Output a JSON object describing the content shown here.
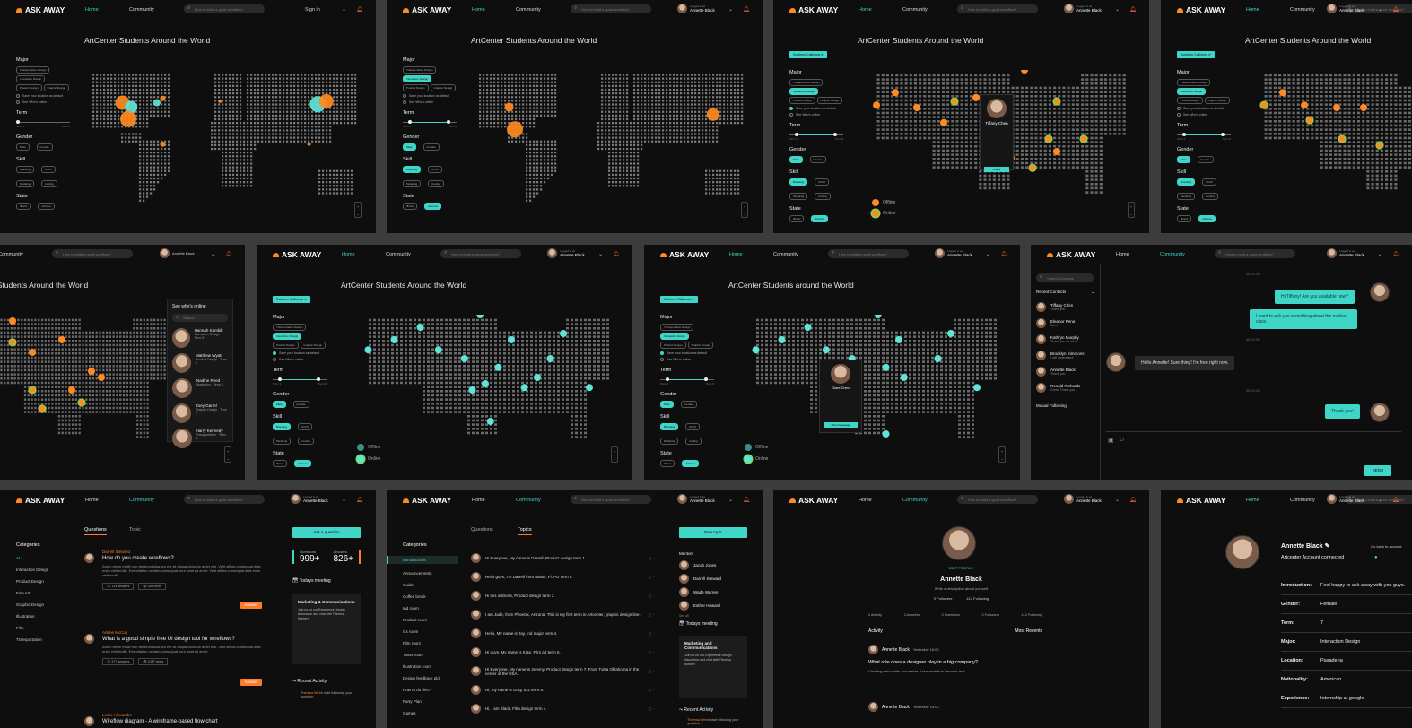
{
  "brand": {
    "name": "ASK AWAY",
    "accent": "#3fd6c8",
    "orange": "#ff7a2a",
    "bg": "#0e0e0e"
  },
  "nav": {
    "home": "Home",
    "community": "Community",
    "sign_in": "Sign in",
    "logged_in": "Logged in as",
    "user_name": "Annette Black"
  },
  "search": {
    "placeholder": "How to build a good workflow?",
    "contacts_placeholder": "Search Contacts",
    "online_placeholder": "Search"
  },
  "map": {
    "title": "ArtCenter Students Around the World",
    "title_alt": "ArtCenter Students around the World",
    "filters": {
      "major": "Major",
      "major_options": [
        "Transportation Design",
        "Interaction Design",
        "Product Design",
        "Graphic Design"
      ],
      "save_location": "Save your location as default",
      "see_online": "See Who's online",
      "term": "Term",
      "term_min": "Term 1",
      "term_max": "Term 8",
      "gender": "Gender",
      "gender_options": [
        "Male",
        "Female"
      ],
      "skill": "Skill",
      "skill_options": [
        "Branding",
        "UI/UX",
        "Modeling",
        "Coding"
      ],
      "state": "State",
      "state_options": [
        "Illinois",
        "Arizona"
      ]
    },
    "tag": "Southern California",
    "legend": {
      "offline": "Offline",
      "online": "Online"
    },
    "zoom_in": "+",
    "zoom_out": "−",
    "popup": {
      "name": "Tiffany Chen",
      "name2": "Glare Chen",
      "follow": "Follow",
      "dm": "Direct Message"
    }
  },
  "online_panel": {
    "title": "See who's online",
    "people": [
      {
        "name": "Hannah Kambik",
        "detail": "Interaction Design · Term 3"
      },
      {
        "name": "Matthew Wyatt",
        "detail": "Product Design · Term 6"
      },
      {
        "name": "Nadine Reed",
        "detail": "Illustration · Term 4"
      },
      {
        "name": "Zoey Garrel",
        "detail": "Graphic Design · Term 2"
      },
      {
        "name": "Harry Kennedy",
        "detail": "Transportation · Term 5"
      }
    ]
  },
  "chat": {
    "recent_contacts": "Recent Contacts",
    "mutual_following": "Mutual Following",
    "contacts": [
      {
        "name": "Tiffany Chen",
        "sub": "Thank you"
      },
      {
        "name": "Eleanor Pena",
        "sub": "Sure!"
      },
      {
        "name": "Kathryn Murphy",
        "sub": "Thank you so much"
      },
      {
        "name": "Brooklyn Simmons",
        "sub": "I will understand"
      },
      {
        "name": "Annette Black",
        "sub": "Thank you"
      },
      {
        "name": "Ronald Richards",
        "sub": "Great! Thank you"
      }
    ],
    "messages": [
      {
        "time": "08:02:40",
        "text": "Hi Tiffany! Are you available now?",
        "me": true
      },
      {
        "text": "I want to ask you something about the motion class.",
        "me": true
      },
      {
        "time": "08:02:50",
        "text": "Hello Annette! Sure thing! I'm free right now.",
        "me": false
      },
      {
        "time": "08:03:00",
        "text": "Thank you!",
        "me": true
      }
    ],
    "send": "SEND"
  },
  "community": {
    "tabs": [
      "Questions",
      "Topic"
    ],
    "tabs2": [
      "Questions",
      "Topics"
    ],
    "ask": "Ask a question",
    "new_topic": "New topic",
    "categories_label": "Categories",
    "categories": [
      "ALL",
      "Interaction Design",
      "Product Design",
      "Fine Art",
      "Graphic Design",
      "Illustration",
      "Film",
      "Transportation"
    ],
    "topic_cats": [
      "Introductions",
      "Announcements",
      "Guide",
      "Coffee break",
      "Ind room",
      "Product room",
      "Gx room",
      "Film room",
      "Trans room",
      "Illustration room",
      "Design feedback pld",
      "How to do this?",
      "Party Plan",
      "Games"
    ],
    "stats": {
      "questions_label": "Questions",
      "questions": "999+",
      "answers_label": "Answers",
      "answers": "826+"
    },
    "meeting": "Todays meeting",
    "meeting_card_title": "Marketing & Communications",
    "meeting_card_title2": "Marketing and Communications",
    "meeting_card_body": "Join us for our Experience Design discussion and chat with Theresa Norbert",
    "recent_activity": "Recent Activity",
    "activity_user": "Theresa Webb",
    "activity_text": "start following your question.",
    "answer_btn": "Answer",
    "mentors": "Mentors",
    "mentor_names": [
      "Jacob Jones",
      "Darrell Steward",
      "Wade Warren",
      "Esther Howard"
    ],
    "see_all": "See all",
    "questions": [
      {
        "author": "Darrell Steward",
        "title": "How do you create wireflows?",
        "body": "Amet minim mollit non deserunt ullamco est sit aliqua dolor do amet sint. Velit officia consequat duis enim velit mollit. Exercitation veniam consequat sunt nostrud amet. Velit officia consequat duis enim velit mollit.",
        "answers": "124 answers",
        "views": "285 views"
      },
      {
        "author": "Arlene McCoy",
        "title": "What is a good simple free UI design tool for wireflows?",
        "body": "Amet minim mollit non deserunt ullamco est sit aliqua dolor do amet sint. Velit officia consequat duis enim velit mollit. Exercitation veniam consequat sunt nostrud amet.",
        "answers": "377 answers",
        "views": "1087 views"
      },
      {
        "author": "Leslie Alexander",
        "title": "Wireflow diagram - A wireframe-based flow chart"
      }
    ],
    "topics": [
      "Hi Everyone, My name is Darrell, Product design term 1",
      "Hello guys, I'm Darrell from Miami, Fl. PD term 5.",
      "Hi this is Elena, Product design term 3.",
      "I am Jade, from Phoenix, Arizona. This is my first term in Artcenter, graphic design line.",
      "Hello, My name is Jay, Ind major term 4.",
      "Hi guys, My name is Kate, Film art term 6.",
      "Hi Everyone, My name is Jeremy, Product design term 7. From Tulsa Oklahoma in the center of the USA.",
      "Hi, my name is Gray, ID2 term 5.",
      "Hi, I am Black, Film design term 4."
    ]
  },
  "profile": {
    "edit": "EDIT PROFILE",
    "name": "Annette Black",
    "bio": "Write a description about yourself",
    "followers": "0 Followers",
    "following": "412 Following",
    "stats": [
      "0 Activity",
      "2 Answers",
      "0 Questions",
      "0 Followers",
      "412 Following"
    ],
    "activity": "Activity",
    "most_recent": "Most Recents",
    "post_time": "Yesterday 18:00",
    "post_q": "What role does a designer play in a big company?",
    "post_body": "Creating new spirits and makes it reasonable to become true."
  },
  "account": {
    "name": "Annette Black",
    "connected": "Artcenter Account connected",
    "back": "Go back to account",
    "rows": [
      [
        "Introduction:",
        "Feel happy to ask away with you guys."
      ],
      [
        "Gender:",
        "Female"
      ],
      [
        "Term:",
        "7"
      ],
      [
        "Major:",
        "Interaction Design"
      ],
      [
        "Location:",
        "Pasadena"
      ],
      [
        "Nationality:",
        "American"
      ],
      [
        "Experience:",
        "Internship at google"
      ]
    ]
  }
}
